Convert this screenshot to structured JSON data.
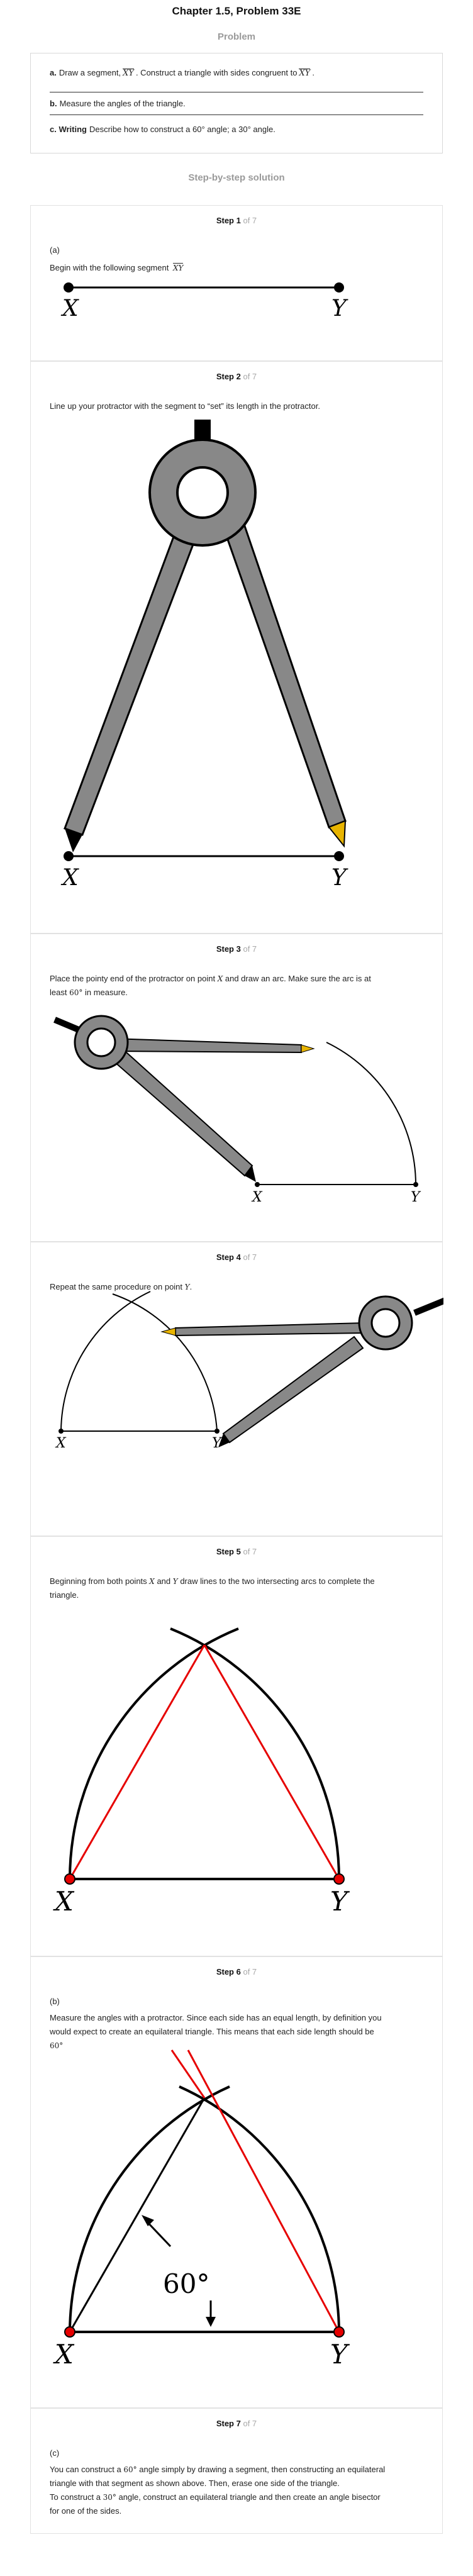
{
  "page": {
    "title": "Chapter 1.5, Problem 33E",
    "problem_heading": "Problem",
    "solution_heading": "Step-by-step solution"
  },
  "problem": {
    "a_label": "a.",
    "a_text1": "Draw a segment,",
    "a_seg1": "XY",
    "a_text2": ". Construct a triangle with sides congruent to",
    "a_seg2": "XY",
    "a_text3": ".",
    "b_label": "b.",
    "b_text": "Measure the angles of the triangle.",
    "c_label": "c. Writing",
    "c_text": "Describe how to construct a 60° angle; a 30° angle."
  },
  "steps": [
    {
      "num": "Step 1",
      "of": "of 7",
      "part": "(a)",
      "text": "Begin with the following segment",
      "seg": "XY",
      "label_x": "X",
      "label_y": "Y"
    },
    {
      "num": "Step 2",
      "of": "of 7",
      "text": "Line up your protractor with the segment to “set” its length in the protractor.",
      "label_x": "X",
      "label_y": "Y"
    },
    {
      "num": "Step 3",
      "of": "of 7",
      "text1": "Place the pointy end of the protractor on point",
      "pt": "X",
      "text2": "and draw an arc. Make sure the arc is at",
      "text3": "least",
      "angle": "60°",
      "text4": "in measure.",
      "label_x": "X",
      "label_y": "Y"
    },
    {
      "num": "Step 4",
      "of": "of 7",
      "text1": "Repeat the same procedure on point",
      "pt": "Y",
      "text2": ".",
      "label_x": "X",
      "label_y": "Y"
    },
    {
      "num": "Step 5",
      "of": "of 7",
      "text1": "Beginning from both points",
      "pt1": "X",
      "text2": "and",
      "pt2": "Y",
      "text3": "draw lines to the two intersecting arcs to complete the",
      "text4": "triangle.",
      "label_x": "X",
      "label_y": "Y"
    },
    {
      "num": "Step 6",
      "of": "of 7",
      "part": "(b)",
      "text1": "Measure the angles with a protractor. Since each side has an equal length, by definition you",
      "text2": "would expect to create an equilateral triangle. This means that each side length should be",
      "angle": "60°",
      "angle_label": "60°",
      "label_x": "X",
      "label_y": "Y"
    },
    {
      "num": "Step 7",
      "of": "of 7",
      "part": "(c)",
      "text1a": "You can construct a",
      "angle1": "60°",
      "text1b": "angle simply by drawing a segment, then constructing an equilateral",
      "text2": "triangle with that segment as shown above. Then, erase one side of the triangle.",
      "text3a": "To construct a",
      "angle2": "30°",
      "text3b": "angle, construct an equilateral triangle and then create an angle bisector",
      "text4": "for one of the sides."
    }
  ],
  "colors": {
    "triangle_lines": "#e60000",
    "compass_gray": "#888888",
    "pencil_tip": "#e8b400",
    "muted_heading": "#9a9a9a"
  }
}
